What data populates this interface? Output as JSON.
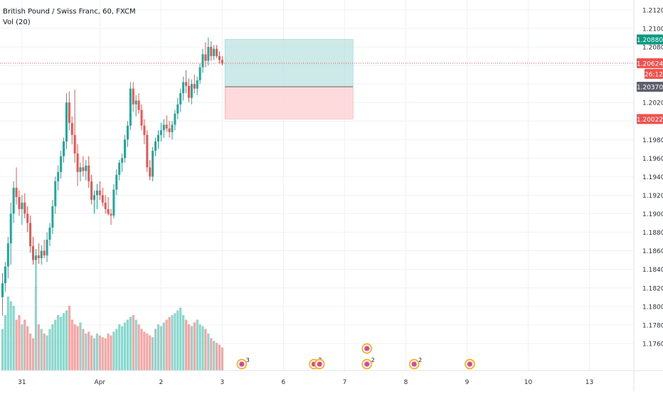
{
  "chart_data": {
    "type": "candlestick",
    "title": "British Pound / Swiss Franc, 60, FXCM",
    "indicator": "Vol (20)",
    "colors": {
      "up": "#26a69a",
      "down": "#ef5350",
      "vol_up": "#8fd5cc",
      "vol_down": "#f5a5a3",
      "grid": "#eef1f5",
      "axis_text": "#2a2e39",
      "current": "#ef5350"
    },
    "ylim": [
      1.174,
      1.2126
    ],
    "y_ticks": [
      "1.21200",
      "1.21000",
      "1.20800",
      "1.20600",
      "1.20400",
      "1.20200",
      "1.20000",
      "1.19800",
      "1.19600",
      "1.19400",
      "1.19200",
      "1.19000",
      "1.18800",
      "1.18600",
      "1.18400",
      "1.18200",
      "1.18000",
      "1.17800",
      "1.17600"
    ],
    "y_tick_values": [
      1.212,
      1.21,
      1.208,
      1.206,
      1.204,
      1.202,
      1.2,
      1.198,
      1.196,
      1.194,
      1.192,
      1.19,
      1.188,
      1.186,
      1.184,
      1.182,
      1.18,
      1.178,
      1.176
    ],
    "x_ticks": [
      "31",
      "Apr",
      "2",
      "3",
      "6",
      "7",
      "8",
      "9",
      "10",
      "13"
    ],
    "x_tick_times": [
      7,
      35,
      57,
      79,
      101,
      123,
      145,
      167,
      189,
      211
    ],
    "current_price": 1.20624,
    "countdown": "26:12",
    "position": {
      "type": "long",
      "entry": 1.2037,
      "target": 1.2088,
      "stop": 1.20022,
      "t_start": 80,
      "t_end": 126
    },
    "price_labels": [
      {
        "text": "1.20880",
        "value": 1.2088,
        "color": "#089981"
      },
      {
        "text": "1.20624",
        "value": 1.20624,
        "color": "#ef5350"
      },
      {
        "text": "1.20370",
        "value": 1.2037,
        "color": "#5d606b"
      },
      {
        "text": "1.20022",
        "value": 1.20022,
        "color": "#ef5350"
      }
    ],
    "candles": [
      [
        0,
        1.181,
        1.1836,
        1.179,
        1.1825
      ],
      [
        1,
        1.1825,
        1.1848,
        1.1816,
        1.1843
      ],
      [
        2,
        1.1843,
        1.1875,
        1.183,
        1.1868
      ],
      [
        3,
        1.1868,
        1.1912,
        1.1845,
        1.19
      ],
      [
        4,
        1.19,
        1.1935,
        1.189,
        1.1928
      ],
      [
        5,
        1.1928,
        1.195,
        1.191,
        1.1918
      ],
      [
        6,
        1.1918,
        1.1925,
        1.1898,
        1.1905
      ],
      [
        7,
        1.1905,
        1.192,
        1.1888,
        1.1912
      ],
      [
        8,
        1.1912,
        1.1922,
        1.1895,
        1.19
      ],
      [
        9,
        1.19,
        1.1908,
        1.188,
        1.189
      ],
      [
        10,
        1.189,
        1.1898,
        1.1858,
        1.1865
      ],
      [
        11,
        1.1865,
        1.1875,
        1.1845,
        1.185
      ],
      [
        12,
        1.185,
        1.1862,
        1.182,
        1.1855
      ],
      [
        13,
        1.1855,
        1.1868,
        1.1846,
        1.1852
      ],
      [
        14,
        1.1852,
        1.1866,
        1.1845,
        1.186
      ],
      [
        15,
        1.186,
        1.1872,
        1.1852,
        1.1855
      ],
      [
        16,
        1.1855,
        1.188,
        1.1848,
        1.1872
      ],
      [
        17,
        1.1872,
        1.189,
        1.1865,
        1.1885
      ],
      [
        18,
        1.1885,
        1.1915,
        1.1878,
        1.1908
      ],
      [
        19,
        1.1908,
        1.194,
        1.19,
        1.1935
      ],
      [
        20,
        1.1935,
        1.1952,
        1.1925,
        1.1945
      ],
      [
        21,
        1.1945,
        1.1968,
        1.1938,
        1.1962
      ],
      [
        22,
        1.1962,
        1.1982,
        1.1955,
        1.1978
      ],
      [
        23,
        1.1978,
        1.203,
        1.197,
        1.202
      ],
      [
        24,
        1.202,
        1.2032,
        1.199,
        1.1998
      ],
      [
        25,
        1.1998,
        1.2005,
        1.1975,
        1.1985
      ],
      [
        26,
        1.1985,
        1.2034,
        1.1955,
        1.1965
      ],
      [
        27,
        1.1965,
        1.1975,
        1.193,
        1.1945
      ],
      [
        28,
        1.1945,
        1.1955,
        1.1935,
        1.195
      ],
      [
        29,
        1.195,
        1.1962,
        1.194,
        1.1946
      ],
      [
        30,
        1.1946,
        1.1958,
        1.1936,
        1.1952
      ],
      [
        31,
        1.1952,
        1.1962,
        1.1928,
        1.1935
      ],
      [
        32,
        1.1935,
        1.1942,
        1.191,
        1.1915
      ],
      [
        33,
        1.1915,
        1.1925,
        1.19,
        1.192
      ],
      [
        34,
        1.192,
        1.1932,
        1.1905,
        1.1925
      ],
      [
        35,
        1.1925,
        1.1935,
        1.1915,
        1.192
      ],
      [
        36,
        1.192,
        1.1928,
        1.1908,
        1.1912
      ],
      [
        37,
        1.1912,
        1.192,
        1.19,
        1.1905
      ],
      [
        38,
        1.1905,
        1.1918,
        1.1898,
        1.19
      ],
      [
        39,
        1.19,
        1.1905,
        1.1888,
        1.1898
      ],
      [
        40,
        1.1898,
        1.1932,
        1.1895,
        1.1926
      ],
      [
        41,
        1.1926,
        1.1948,
        1.192,
        1.1942
      ],
      [
        42,
        1.1942,
        1.1958,
        1.1936,
        1.1955
      ],
      [
        43,
        1.1955,
        1.1965,
        1.1945,
        1.196
      ],
      [
        44,
        1.196,
        1.1985,
        1.1955,
        1.198
      ],
      [
        45,
        1.198,
        1.2,
        1.1972,
        1.1995
      ],
      [
        46,
        1.1995,
        1.2042,
        1.199,
        1.2035
      ],
      [
        47,
        1.2035,
        1.2042,
        1.201,
        1.2018
      ],
      [
        48,
        1.2018,
        1.2028,
        1.2005,
        1.2022
      ],
      [
        49,
        1.2022,
        1.203,
        1.2008,
        1.2012
      ],
      [
        50,
        1.2012,
        1.2018,
        1.199,
        1.1995
      ],
      [
        51,
        1.1995,
        1.2002,
        1.1975,
        1.1985
      ],
      [
        52,
        1.1985,
        1.199,
        1.1945,
        1.195
      ],
      [
        53,
        1.195,
        1.1958,
        1.1936,
        1.194
      ],
      [
        54,
        1.194,
        1.1972,
        1.1935,
        1.1968
      ],
      [
        55,
        1.1968,
        1.1982,
        1.1962,
        1.1978
      ],
      [
        56,
        1.1978,
        1.199,
        1.197,
        1.1985
      ],
      [
        57,
        1.1985,
        1.1998,
        1.1978,
        1.199
      ],
      [
        58,
        1.199,
        1.2002,
        1.1982,
        1.1996
      ],
      [
        59,
        1.1996,
        1.2006,
        1.1988,
        1.1992
      ],
      [
        60,
        1.1992,
        1.2,
        1.1982,
        1.1988
      ],
      [
        61,
        1.1988,
        1.2,
        1.198,
        1.1996
      ],
      [
        62,
        1.1996,
        1.2012,
        1.199,
        1.2008
      ],
      [
        63,
        1.2008,
        1.2025,
        1.2002,
        1.2018
      ],
      [
        64,
        1.2018,
        1.2035,
        1.201,
        1.203
      ],
      [
        65,
        1.203,
        1.2048,
        1.2022,
        1.2042
      ],
      [
        66,
        1.2042,
        1.2055,
        1.203,
        1.2038
      ],
      [
        67,
        1.2038,
        1.2046,
        1.202,
        1.2025
      ],
      [
        68,
        1.2025,
        1.2045,
        1.2018,
        1.204
      ],
      [
        69,
        1.204,
        1.205,
        1.203,
        1.2035
      ],
      [
        70,
        1.2035,
        1.2048,
        1.2028,
        1.2044
      ],
      [
        71,
        1.2044,
        1.2062,
        1.204,
        1.2058
      ],
      [
        72,
        1.2058,
        1.2078,
        1.2052,
        1.2072
      ],
      [
        73,
        1.2072,
        1.2085,
        1.2058,
        1.2065
      ],
      [
        74,
        1.2065,
        1.209,
        1.206,
        1.208
      ],
      [
        75,
        1.208,
        1.2086,
        1.2065,
        1.207
      ],
      [
        76,
        1.207,
        1.2082,
        1.2066,
        1.2078
      ],
      [
        77,
        1.2078,
        1.2082,
        1.2068,
        1.207
      ],
      [
        78,
        1.207,
        1.2075,
        1.2062,
        1.2066
      ],
      [
        79,
        1.2066,
        1.207,
        1.206,
        1.2062
      ]
    ],
    "volume_max": 100,
    "volumes": [
      45,
      60,
      80,
      75,
      70,
      55,
      60,
      50,
      55,
      48,
      40,
      35,
      90,
      50,
      45,
      40,
      38,
      45,
      50,
      55,
      60,
      58,
      62,
      65,
      70,
      55,
      50,
      48,
      52,
      45,
      40,
      42,
      38,
      35,
      40,
      38,
      36,
      35,
      40,
      38,
      42,
      45,
      50,
      48,
      52,
      55,
      58,
      60,
      55,
      50,
      45,
      42,
      40,
      38,
      36,
      45,
      50,
      48,
      52,
      55,
      58,
      60,
      62,
      65,
      68,
      60,
      55,
      50,
      48,
      52,
      55,
      50,
      48,
      45,
      40,
      35,
      32,
      30,
      28,
      25
    ],
    "events": [
      {
        "t": 86,
        "badge": "3"
      },
      {
        "t": 112,
        "badge": "2"
      },
      {
        "t": 114,
        "badge": ""
      },
      {
        "t": 131,
        "badge": "2"
      },
      {
        "t": 131,
        "badge": ""
      },
      {
        "t": 148,
        "badge": "2"
      },
      {
        "t": 168,
        "badge": ""
      }
    ]
  }
}
